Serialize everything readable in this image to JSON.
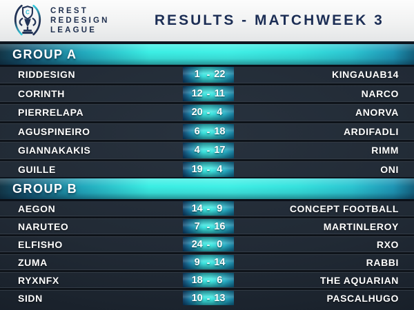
{
  "header": {
    "wordmark": [
      "CREST",
      "REDESIGN",
      "LEAGUE"
    ],
    "title": "RESULTS - MATCHWEEK 3"
  },
  "ui": {
    "score_dash": "-"
  },
  "colors": {
    "header_bg": "#f2f2f2",
    "navy_text": "#1c2e55",
    "cyan_bright": "#3beee4",
    "cyan_dark": "#175f7c",
    "board_bg": "#212a35",
    "row_text": "#ffffff"
  },
  "groups": [
    {
      "label": "GROUP A",
      "matches": [
        {
          "home": "RIDDESIGN",
          "home_score": "1",
          "away_score": "22",
          "away": "KINGAUAB14"
        },
        {
          "home": "CORINTH",
          "home_score": "12",
          "away_score": "11",
          "away": "NARCO"
        },
        {
          "home": "PIERRELAPA",
          "home_score": "20",
          "away_score": "4",
          "away": "ANORVA"
        },
        {
          "home": "AGUSPINEIRO",
          "home_score": "6",
          "away_score": "18",
          "away": "ARDIFADLI"
        },
        {
          "home": "GIANNAKAKIS",
          "home_score": "4",
          "away_score": "17",
          "away": "RIMM"
        },
        {
          "home": "GUILLE",
          "home_score": "19",
          "away_score": "4",
          "away": "ONI"
        }
      ]
    },
    {
      "label": "GROUP B",
      "matches": [
        {
          "home": "AEGON",
          "home_score": "14",
          "away_score": "9",
          "away": "CONCEPT FOOTBALL"
        },
        {
          "home": "NARUTEO",
          "home_score": "7",
          "away_score": "16",
          "away": "MARTINLEROY"
        },
        {
          "home": "ELFISHO",
          "home_score": "24",
          "away_score": "0",
          "away": "RXO"
        },
        {
          "home": "ZUMA",
          "home_score": "9",
          "away_score": "14",
          "away": "RABBI"
        },
        {
          "home": "RYXNFX",
          "home_score": "18",
          "away_score": "6",
          "away": "THE AQUARIAN"
        },
        {
          "home": "SIDN",
          "home_score": "10",
          "away_score": "13",
          "away": "PASCALHUGO"
        }
      ]
    }
  ]
}
